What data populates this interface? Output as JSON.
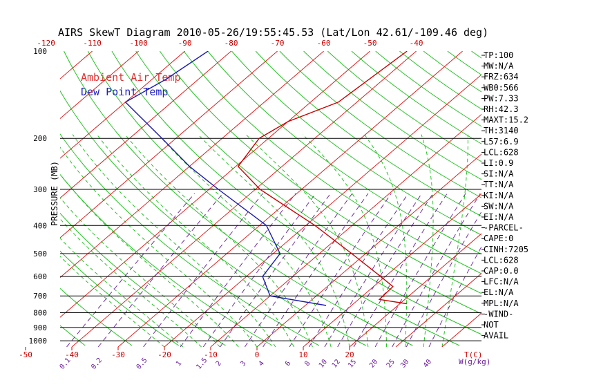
{
  "chart_data": {
    "type": "line",
    "title": "AIRS SkewT Diagram 2010-05-26/19:55:45.53 (Lat/Lon 42.61/-109.46 deg)",
    "ylabel": "PRESSURE (MB)",
    "xlabel": "T(C)",
    "mixing_ratio_label": "W(g/kg)",
    "y_scale": "log",
    "ylim": [
      1050,
      100
    ],
    "pressure_ticks": [
      100,
      200,
      300,
      400,
      500,
      600,
      700,
      800,
      900,
      1000
    ],
    "bottom_temp_ticks": [
      -50,
      -40,
      -30,
      -20,
      -10,
      0,
      10,
      20
    ],
    "top_temp_ticks": [
      -120,
      -110,
      -100,
      -90,
      -80,
      -70,
      -60,
      -50,
      -40
    ],
    "mixing_ratio_ticks": [
      "0.1",
      "0.2",
      "0.5",
      "1",
      "1.5",
      "2",
      "3",
      "4",
      "6",
      "8",
      "10",
      "12",
      "15",
      "20",
      "25",
      "30",
      "40"
    ],
    "legend": [
      {
        "name": "Ambient Air Temp",
        "color": "#e03030"
      },
      {
        "name": "Dew Point Temp",
        "color": "#2020c0"
      }
    ],
    "series": [
      {
        "name": "Ambient Air Temp",
        "color": "#cc0000",
        "points": [
          {
            "p": 745,
            "t": 21.5
          },
          {
            "p": 720,
            "t": 14.5
          },
          {
            "p": 650,
            "t": 14.2
          },
          {
            "p": 600,
            "t": 9.0
          },
          {
            "p": 500,
            "t": -3.0
          },
          {
            "p": 400,
            "t": -18.0
          },
          {
            "p": 300,
            "t": -39.0
          },
          {
            "p": 250,
            "t": -49.5
          },
          {
            "p": 200,
            "t": -52.0
          },
          {
            "p": 175,
            "t": -50.0
          },
          {
            "p": 150,
            "t": -44.0
          },
          {
            "p": 100,
            "t": -42.0
          }
        ]
      },
      {
        "name": "Dew Point Temp",
        "color": "#1a1ab0",
        "points": [
          {
            "p": 755,
            "t": 4.5
          },
          {
            "p": 700,
            "t": -10.0
          },
          {
            "p": 600,
            "t": -16.5
          },
          {
            "p": 500,
            "t": -18.5
          },
          {
            "p": 400,
            "t": -28.5
          },
          {
            "p": 300,
            "t": -48.0
          },
          {
            "p": 250,
            "t": -60.0
          },
          {
            "p": 200,
            "t": -73.0
          },
          {
            "p": 150,
            "t": -90.0
          },
          {
            "p": 125,
            "t": -87.0
          },
          {
            "p": 100,
            "t": -85.0
          }
        ]
      }
    ],
    "indices": [
      "TP:100",
      "MW:N/A",
      "FRZ:634",
      "WB0:566",
      "PW:7.33",
      "RH:42.3",
      "MAXT:15.2",
      "TH:3140",
      "L57:6.9",
      "LCL:628",
      "LI:0.9",
      "SI:N/A",
      "TT:N/A",
      "KI:N/A",
      "SW:N/A",
      "EI:N/A",
      "-PARCEL-",
      "CAPE:0",
      "CINH:7205",
      "LCL:628",
      "CAP:0.0",
      "LFC:N/A",
      "EL:N/A",
      "MPL:N/A",
      "-WIND-",
      "NOT",
      "AVAIL"
    ]
  }
}
